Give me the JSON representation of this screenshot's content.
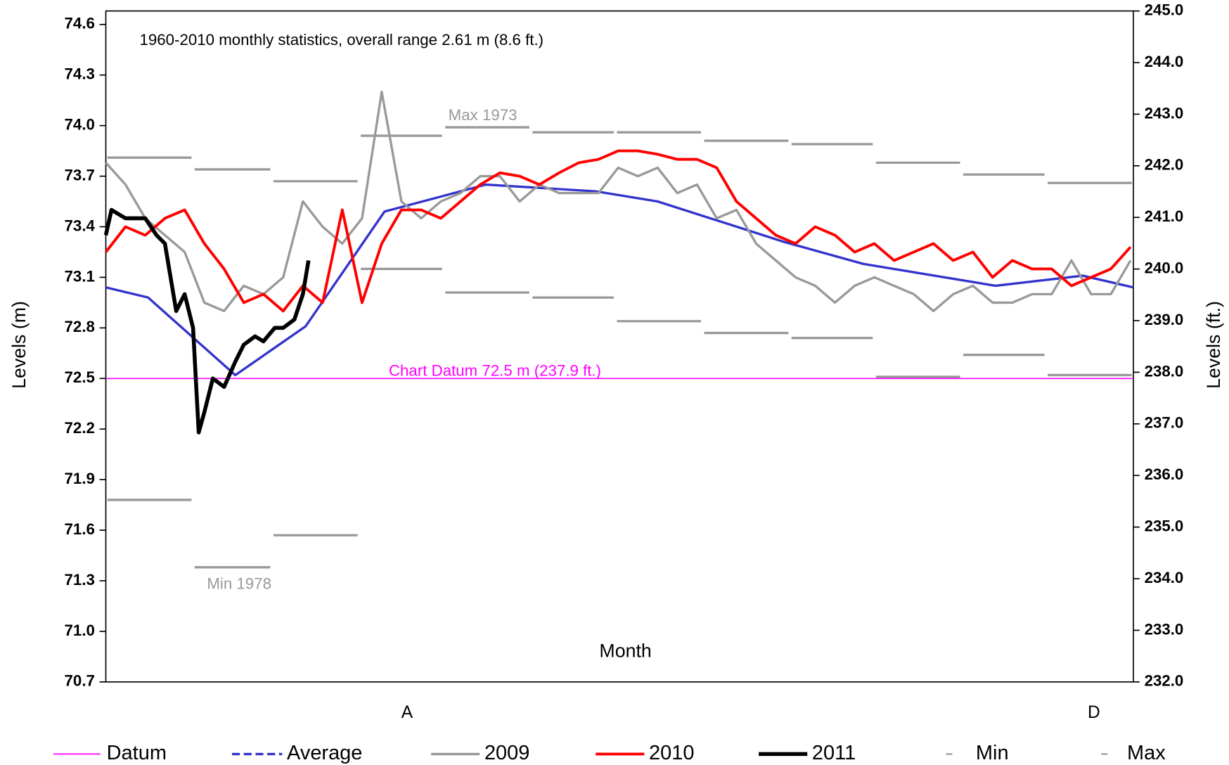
{
  "chart_data": {
    "type": "line",
    "title": "1960-2010 monthly statistics, overall range 2.61 m (8.6 ft.)",
    "y_label": "Levels (m)",
    "y2_label": "Levels (ft.)",
    "x_label": "Month",
    "xlim": [
      0,
      365
    ],
    "xticks": [
      {
        "value": 107,
        "label": "A"
      },
      {
        "value": 351,
        "label": "D"
      }
    ],
    "ylim": [
      70.7,
      74.68
    ],
    "yticks": [
      70.7,
      {
        "value": 71.0,
        "label": "71.0"
      },
      71.3,
      71.6,
      71.9,
      72.2,
      72.5,
      72.8,
      73.1,
      73.4,
      73.7,
      {
        "value": 74.0,
        "label": "74.0"
      },
      74.3,
      74.6
    ],
    "y2lim": [
      232,
      245
    ],
    "y2ticks": [
      {
        "value": 232,
        "label": "232.0"
      },
      {
        "value": 233,
        "label": "233.0"
      },
      {
        "value": 234,
        "label": "234.0"
      },
      {
        "value": 235,
        "label": "235.0"
      },
      {
        "value": 236,
        "label": "236.0"
      },
      {
        "value": 237,
        "label": "237.0"
      },
      {
        "value": 238,
        "label": "238.0"
      },
      {
        "value": 239,
        "label": "239.0"
      },
      {
        "value": 240,
        "label": "240.0"
      },
      {
        "value": 241,
        "label": "241.0"
      },
      {
        "value": 242,
        "label": "242.0"
      },
      {
        "value": 243,
        "label": "243.0"
      },
      {
        "value": 244,
        "label": "244.0"
      },
      {
        "value": 245,
        "label": "245.0"
      }
    ],
    "grid": false,
    "annotations": [
      {
        "text": "Max 1973",
        "color": "#999999"
      },
      {
        "text": "Min 1978",
        "color": "#999999"
      },
      {
        "text": "Chart Datum 72.5 m (237.9 ft.)",
        "color": "#ff00ff"
      }
    ],
    "series": [
      {
        "name": "Datum",
        "color": "#ff00ff",
        "style": "line",
        "x": [
          0,
          365
        ],
        "values": [
          72.5,
          72.5
        ]
      },
      {
        "name": "Average",
        "color": "#3333cc",
        "style": "line",
        "legend_dash": true,
        "x": [
          0,
          15,
          46,
          71,
          99,
          135,
          174,
          196,
          241,
          269,
          316,
          347,
          365
        ],
        "values": [
          73.04,
          72.98,
          72.52,
          72.81,
          73.49,
          73.65,
          73.61,
          73.55,
          73.31,
          73.18,
          73.05,
          73.11,
          73.04
        ]
      },
      {
        "name": "2009",
        "color": "#999999",
        "style": "line",
        "x": [
          0,
          7,
          14,
          21,
          28,
          35,
          42,
          49,
          56,
          63,
          70,
          77,
          84,
          91,
          98,
          105,
          112,
          119,
          126,
          133,
          140,
          147,
          154,
          161,
          168,
          175,
          182,
          189,
          196,
          203,
          210,
          217,
          224,
          231,
          238,
          245,
          252,
          259,
          266,
          273,
          280,
          287,
          294,
          301,
          308,
          315,
          322,
          329,
          336,
          343,
          350,
          357,
          364
        ],
        "values": [
          73.78,
          73.65,
          73.45,
          73.35,
          73.25,
          72.95,
          72.9,
          73.05,
          73.0,
          73.1,
          73.55,
          73.4,
          73.3,
          73.45,
          74.2,
          73.55,
          73.45,
          73.55,
          73.6,
          73.7,
          73.7,
          73.55,
          73.65,
          73.6,
          73.6,
          73.6,
          73.75,
          73.7,
          73.75,
          73.6,
          73.65,
          73.45,
          73.5,
          73.3,
          73.2,
          73.1,
          73.05,
          72.95,
          73.05,
          73.1,
          73.05,
          73.0,
          72.9,
          73.0,
          73.05,
          72.95,
          72.95,
          73.0,
          73.0,
          73.2,
          73.0,
          73.0,
          73.2
        ]
      },
      {
        "name": "2010",
        "color": "#ff0000",
        "style": "line",
        "x": [
          0,
          7,
          14,
          21,
          28,
          35,
          42,
          49,
          56,
          63,
          70,
          77,
          84,
          91,
          98,
          105,
          112,
          119,
          126,
          133,
          140,
          147,
          154,
          161,
          168,
          175,
          182,
          189,
          196,
          203,
          210,
          217,
          224,
          231,
          238,
          245,
          252,
          259,
          266,
          273,
          280,
          287,
          294,
          301,
          308,
          315,
          322,
          329,
          336,
          343,
          350,
          357,
          364
        ],
        "values": [
          73.25,
          73.4,
          73.35,
          73.45,
          73.5,
          73.3,
          73.15,
          72.95,
          73.0,
          72.9,
          73.05,
          72.95,
          73.5,
          72.95,
          73.3,
          73.5,
          73.5,
          73.45,
          73.55,
          73.65,
          73.72,
          73.7,
          73.65,
          73.72,
          73.78,
          73.8,
          73.85,
          73.85,
          73.83,
          73.8,
          73.8,
          73.75,
          73.55,
          73.45,
          73.35,
          73.3,
          73.4,
          73.35,
          73.25,
          73.3,
          73.2,
          73.25,
          73.3,
          73.2,
          73.25,
          73.1,
          73.2,
          73.15,
          73.15,
          73.05,
          73.1,
          73.15,
          73.28
        ]
      },
      {
        "name": "2011",
        "color": "#000000",
        "style": "line",
        "x": [
          0,
          2,
          7,
          14,
          18,
          21,
          25,
          28,
          31,
          33,
          35,
          38,
          42,
          46,
          49,
          53,
          56,
          60,
          63,
          67,
          70,
          72
        ],
        "values": [
          73.35,
          73.5,
          73.45,
          73.45,
          73.35,
          73.3,
          72.9,
          73.0,
          72.8,
          72.18,
          72.3,
          72.5,
          72.45,
          72.6,
          72.7,
          72.75,
          72.72,
          72.8,
          72.8,
          72.85,
          73.0,
          73.2
        ]
      },
      {
        "name": "Min",
        "color": "#999999",
        "style": "segments",
        "x": [
          0,
          31,
          59,
          90,
          120,
          151,
          181,
          212,
          243,
          273,
          304,
          334
        ],
        "values": [
          71.78,
          71.38,
          71.57,
          73.15,
          73.01,
          72.98,
          72.84,
          72.77,
          72.74,
          72.51,
          72.64,
          72.52
        ]
      },
      {
        "name": "Max",
        "color": "#999999",
        "style": "segments",
        "x": [
          0,
          31,
          59,
          90,
          120,
          151,
          181,
          212,
          243,
          273,
          304,
          334
        ],
        "values": [
          73.81,
          73.74,
          73.67,
          73.94,
          73.99,
          73.96,
          73.96,
          73.91,
          73.89,
          73.78,
          73.71,
          73.66
        ]
      }
    ]
  }
}
